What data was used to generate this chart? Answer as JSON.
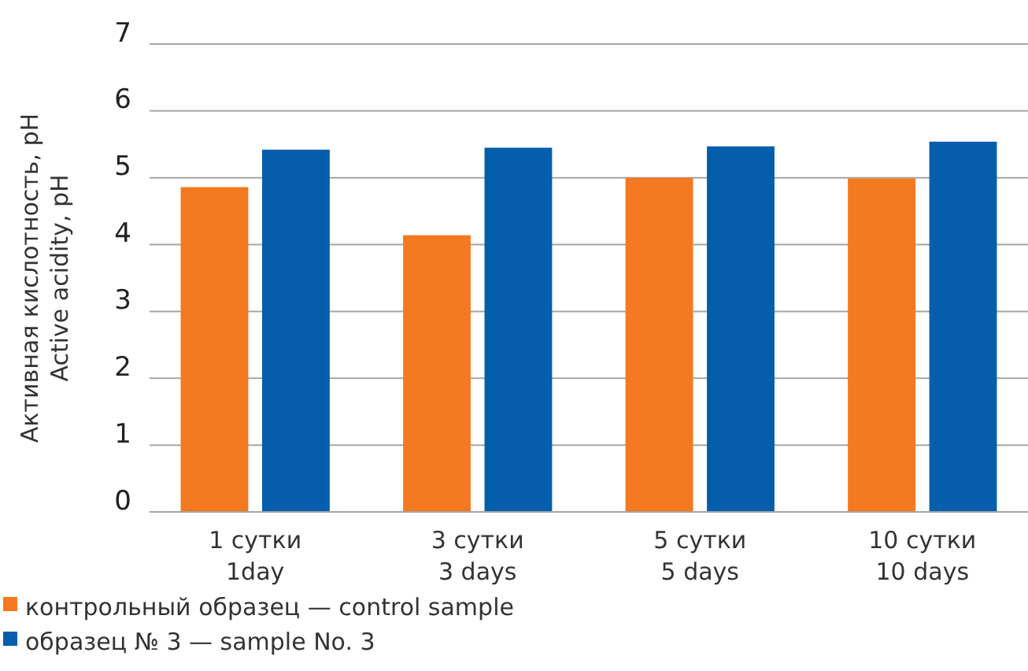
{
  "chart_data": {
    "type": "bar",
    "ylabel": "Активная кислотность, pH\nActive acidity, pH",
    "categories": [
      "1 сутки\n1day",
      "3 сутки\n3 days",
      "5 сутки\n5 days",
      "10 сутки\n10 days"
    ],
    "series": [
      {
        "name": "контрольный образец — control sample",
        "color": "#f47920",
        "values": [
          4.86,
          4.14,
          5.0,
          4.99
        ]
      },
      {
        "name": "образец № 3 — sample No. 3",
        "color": "#045eac",
        "values": [
          5.42,
          5.45,
          5.47,
          5.54
        ]
      }
    ],
    "ylim": [
      0,
      7
    ],
    "yticks": [
      0,
      1,
      2,
      3,
      4,
      5,
      6,
      7
    ],
    "grid": "y",
    "legend": "bottom"
  }
}
